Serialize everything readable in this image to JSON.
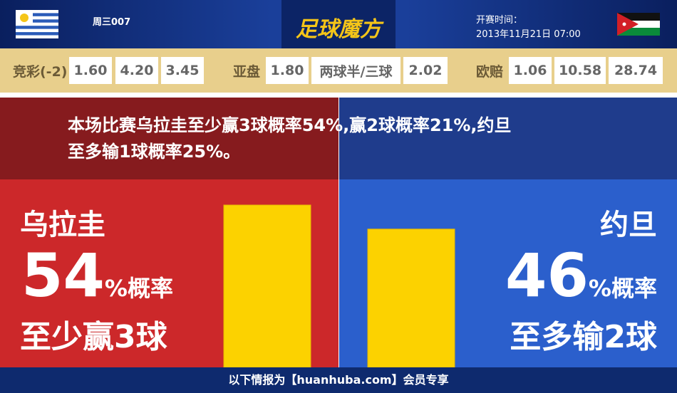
{
  "header": {
    "match_no": "周三007",
    "logo": "足球魔方",
    "kickoff_label": "开赛时间：",
    "kickoff_time": "2013年11月21日 07:00"
  },
  "odds": [
    {
      "label": "竞彩(-2)",
      "values": [
        "1.60",
        "4.20",
        "3.45"
      ]
    },
    {
      "label": "亚盘",
      "values": [
        "1.80",
        "两球半/三球",
        "2.02"
      ]
    },
    {
      "label": "欧赔",
      "values": [
        "1.06",
        "10.58",
        "28.74"
      ]
    }
  ],
  "summary": [
    "本场比赛乌拉圭至少赢3球概率54%,赢2球概率21%,约旦",
    "至多输1球概率25%。"
  ],
  "home": {
    "team": "乌拉圭",
    "percent": 54,
    "percent_unit": "%概率",
    "outcome": "至少赢3球"
  },
  "away": {
    "team": "约旦",
    "percent": 46,
    "percent_unit": "%概率",
    "outcome": "至多输2球"
  },
  "footer": "以下情报为【huanhuba.com】会员专享"
}
